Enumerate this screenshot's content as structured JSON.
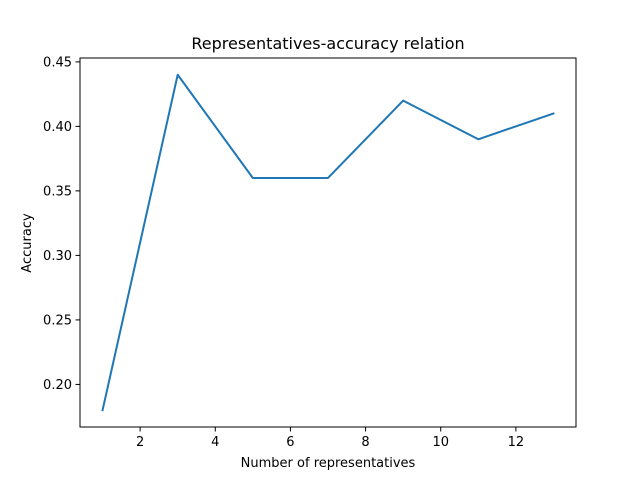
{
  "chart_data": {
    "type": "line",
    "title": "Representatives-accuracy relation",
    "xlabel": "Number of representatives",
    "ylabel": "Accuracy",
    "xlim": [
      0.4,
      13.6
    ],
    "ylim": [
      0.167,
      0.453
    ],
    "xticks": [
      2,
      4,
      6,
      8,
      10,
      12
    ],
    "xtick_labels": [
      "2",
      "4",
      "6",
      "8",
      "10",
      "12"
    ],
    "yticks": [
      0.2,
      0.25,
      0.3,
      0.35,
      0.4,
      0.45
    ],
    "ytick_labels": [
      "0.20",
      "0.25",
      "0.30",
      "0.35",
      "0.40",
      "0.45"
    ],
    "grid": false,
    "series": [
      {
        "color": "#1f77b4",
        "x": [
          1,
          3,
          5,
          7,
          9,
          11,
          13
        ],
        "y": [
          0.18,
          0.44,
          0.36,
          0.36,
          0.42,
          0.39,
          0.41
        ]
      }
    ]
  }
}
